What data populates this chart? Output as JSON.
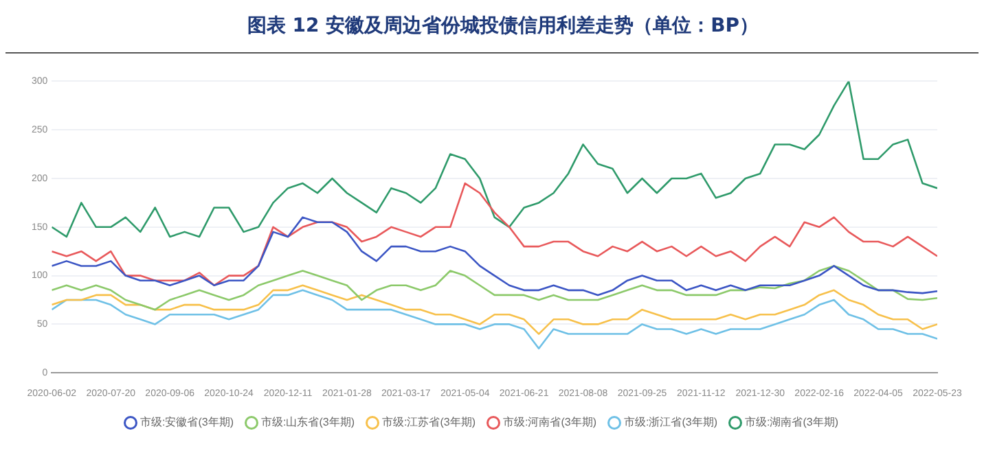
{
  "chart_data": {
    "type": "line",
    "title": "图表 12 安徽及周边省份城投债信用利差走势（单位：BP）",
    "x": [
      "2020-06-02",
      "2020-06-14",
      "2020-06-26",
      "2020-07-08",
      "2020-07-20",
      "2020-08-01",
      "2020-08-13",
      "2020-08-25",
      "2020-09-06",
      "2020-09-18",
      "2020-09-30",
      "2020-10-12",
      "2020-10-24",
      "2020-11-05",
      "2020-11-17",
      "2020-11-29",
      "2020-12-11",
      "2020-12-23",
      "2021-01-04",
      "2021-01-16",
      "2021-01-28",
      "2021-02-09",
      "2021-02-21",
      "2021-03-05",
      "2021-03-17",
      "2021-03-29",
      "2021-04-10",
      "2021-04-22",
      "2021-05-04",
      "2021-05-16",
      "2021-05-28",
      "2021-06-09",
      "2021-06-21",
      "2021-07-03",
      "2021-07-15",
      "2021-07-27",
      "2021-08-08",
      "2021-08-20",
      "2021-09-01",
      "2021-09-13",
      "2021-09-25",
      "2021-10-07",
      "2021-10-19",
      "2021-10-31",
      "2021-11-12",
      "2021-11-24",
      "2021-12-06",
      "2021-12-18",
      "2021-12-30",
      "2022-01-11",
      "2022-01-23",
      "2022-02-04",
      "2022-02-16",
      "2022-02-28",
      "2022-03-12",
      "2022-03-24",
      "2022-04-05",
      "2022-04-17",
      "2022-04-29",
      "2022-05-11",
      "2022-05-23"
    ],
    "series": [
      {
        "name": "市级:安徽省(3年期)",
        "color": "#3b55c4",
        "values": [
          110,
          115,
          110,
          110,
          115,
          100,
          95,
          95,
          90,
          95,
          100,
          90,
          95,
          95,
          110,
          145,
          140,
          160,
          155,
          155,
          145,
          125,
          115,
          130,
          130,
          125,
          125,
          130,
          125,
          110,
          100,
          90,
          85,
          85,
          90,
          85,
          85,
          80,
          85,
          95,
          100,
          95,
          95,
          85,
          90,
          85,
          90,
          85,
          90,
          90,
          90,
          95,
          100,
          110,
          100,
          90,
          85,
          85,
          83,
          82,
          84
        ]
      },
      {
        "name": "市级:山东省(3年期)",
        "color": "#8cc96a",
        "values": [
          85,
          90,
          85,
          90,
          85,
          75,
          70,
          65,
          75,
          80,
          85,
          80,
          75,
          80,
          90,
          95,
          100,
          105,
          100,
          95,
          90,
          75,
          85,
          90,
          90,
          85,
          90,
          105,
          100,
          90,
          80,
          80,
          80,
          75,
          80,
          75,
          75,
          75,
          80,
          85,
          90,
          85,
          85,
          80,
          80,
          80,
          85,
          85,
          88,
          87,
          92,
          95,
          105,
          110,
          105,
          95,
          85,
          85,
          76,
          75,
          77
        ]
      },
      {
        "name": "市级:江苏省(3年期)",
        "color": "#f7c04a",
        "values": [
          70,
          75,
          75,
          80,
          80,
          70,
          70,
          65,
          65,
          70,
          70,
          65,
          65,
          65,
          70,
          85,
          85,
          90,
          85,
          80,
          75,
          80,
          75,
          70,
          65,
          65,
          60,
          60,
          55,
          50,
          60,
          60,
          55,
          40,
          55,
          55,
          50,
          50,
          55,
          55,
          65,
          60,
          55,
          55,
          55,
          55,
          60,
          55,
          60,
          60,
          65,
          70,
          80,
          85,
          75,
          70,
          60,
          55,
          55,
          45,
          50
        ]
      },
      {
        "name": "市级:河南省(3年期)",
        "color": "#e8585a",
        "values": [
          125,
          120,
          125,
          115,
          125,
          100,
          100,
          95,
          95,
          95,
          103,
          90,
          100,
          100,
          110,
          150,
          140,
          150,
          155,
          155,
          150,
          135,
          140,
          150,
          145,
          140,
          150,
          150,
          195,
          185,
          165,
          150,
          130,
          130,
          135,
          135,
          125,
          120,
          130,
          125,
          135,
          125,
          130,
          120,
          130,
          120,
          125,
          115,
          130,
          140,
          130,
          155,
          150,
          160,
          145,
          135,
          135,
          130,
          140,
          130,
          120
        ]
      },
      {
        "name": "市级:浙江省(3年期)",
        "color": "#6ec0e6",
        "values": [
          65,
          75,
          75,
          75,
          70,
          60,
          55,
          50,
          60,
          60,
          60,
          60,
          55,
          60,
          65,
          80,
          80,
          85,
          80,
          75,
          65,
          65,
          65,
          65,
          60,
          55,
          50,
          50,
          50,
          45,
          50,
          50,
          45,
          25,
          45,
          40,
          40,
          40,
          40,
          40,
          50,
          45,
          45,
          40,
          45,
          40,
          45,
          45,
          45,
          50,
          55,
          60,
          70,
          75,
          60,
          55,
          45,
          45,
          40,
          40,
          35
        ]
      },
      {
        "name": "市级:湖南省(3年期)",
        "color": "#2e9a6a",
        "values": [
          150,
          140,
          175,
          150,
          150,
          160,
          145,
          170,
          140,
          145,
          140,
          170,
          170,
          145,
          150,
          175,
          190,
          195,
          185,
          200,
          185,
          175,
          165,
          190,
          185,
          175,
          190,
          225,
          220,
          200,
          160,
          150,
          170,
          175,
          185,
          205,
          235,
          215,
          210,
          185,
          200,
          185,
          200,
          200,
          205,
          180,
          185,
          200,
          205,
          235,
          235,
          230,
          245,
          275,
          300,
          220,
          220,
          235,
          240,
          195,
          190
        ]
      }
    ],
    "xlim": [
      "2020-06-02",
      "2022-05-23"
    ],
    "xticks": [
      "2020-06-02",
      "2020-07-20",
      "2020-09-06",
      "2020-10-24",
      "2020-12-11",
      "2021-01-28",
      "2021-03-17",
      "2021-05-04",
      "2021-06-21",
      "2021-08-08",
      "2021-09-25",
      "2021-11-12",
      "2021-12-30",
      "2022-02-16",
      "2022-04-05",
      "2022-05-23"
    ],
    "ylim": [
      0,
      300
    ],
    "yticks": [
      0,
      50,
      100,
      150,
      200,
      250,
      300
    ],
    "grid": "y",
    "legend": "bottom",
    "marker": "none",
    "line_style": "solid"
  }
}
